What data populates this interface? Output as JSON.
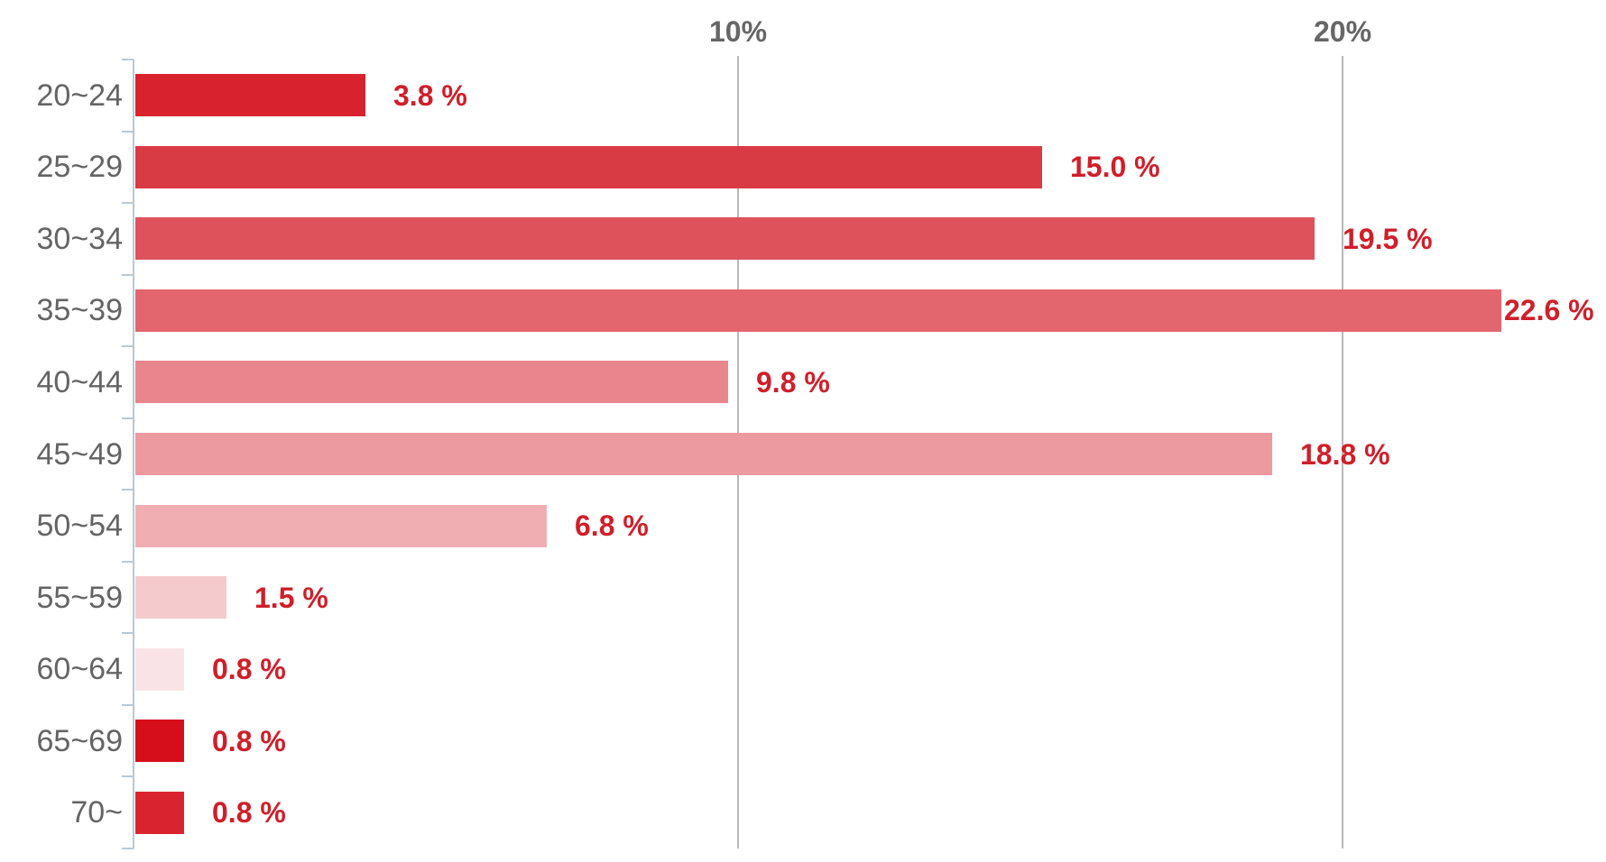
{
  "chart_data": {
    "type": "bar",
    "orientation": "horizontal",
    "title": "",
    "xlabel": "",
    "ylabel": "",
    "legend": "none",
    "grid": "vertical gridlines at x-axis ticks only",
    "categories": [
      "20~24",
      "25~29",
      "30~34",
      "35~39",
      "40~44",
      "45~49",
      "50~54",
      "55~59",
      "60~64",
      "65~69",
      "70~"
    ],
    "values": [
      3.8,
      15.0,
      19.5,
      22.6,
      9.8,
      18.8,
      6.8,
      1.5,
      0.8,
      0.8,
      0.8
    ],
    "value_labels": [
      "3.8 %",
      "15.0 %",
      "19.5 %",
      "22.6 %",
      "9.8 %",
      "18.8 %",
      "6.8 %",
      "1.5 %",
      "0.8 %",
      "0.8 %",
      "0.8 %"
    ],
    "bar_colors": [
      "#d8232e",
      "#d93b44",
      "#dd525b",
      "#e3666f",
      "#e9858d",
      "#ec99a0",
      "#f0aeb3",
      "#f5cacd",
      "#fae3e6",
      "#d60e1b",
      "#d92430"
    ],
    "x_axis": {
      "min": 0,
      "max": 24.4,
      "ticks": [
        {
          "value": 10,
          "label": "10%"
        },
        {
          "value": 20,
          "label": "20%"
        }
      ]
    }
  },
  "colors": {
    "background": "#ffffff",
    "value_label_text": "#cf1f2a",
    "category_label_text": "#646464",
    "x_axis_label_text": "#666666",
    "gridline": "#b8b8b8",
    "axis_line": "#b9c8d3"
  }
}
